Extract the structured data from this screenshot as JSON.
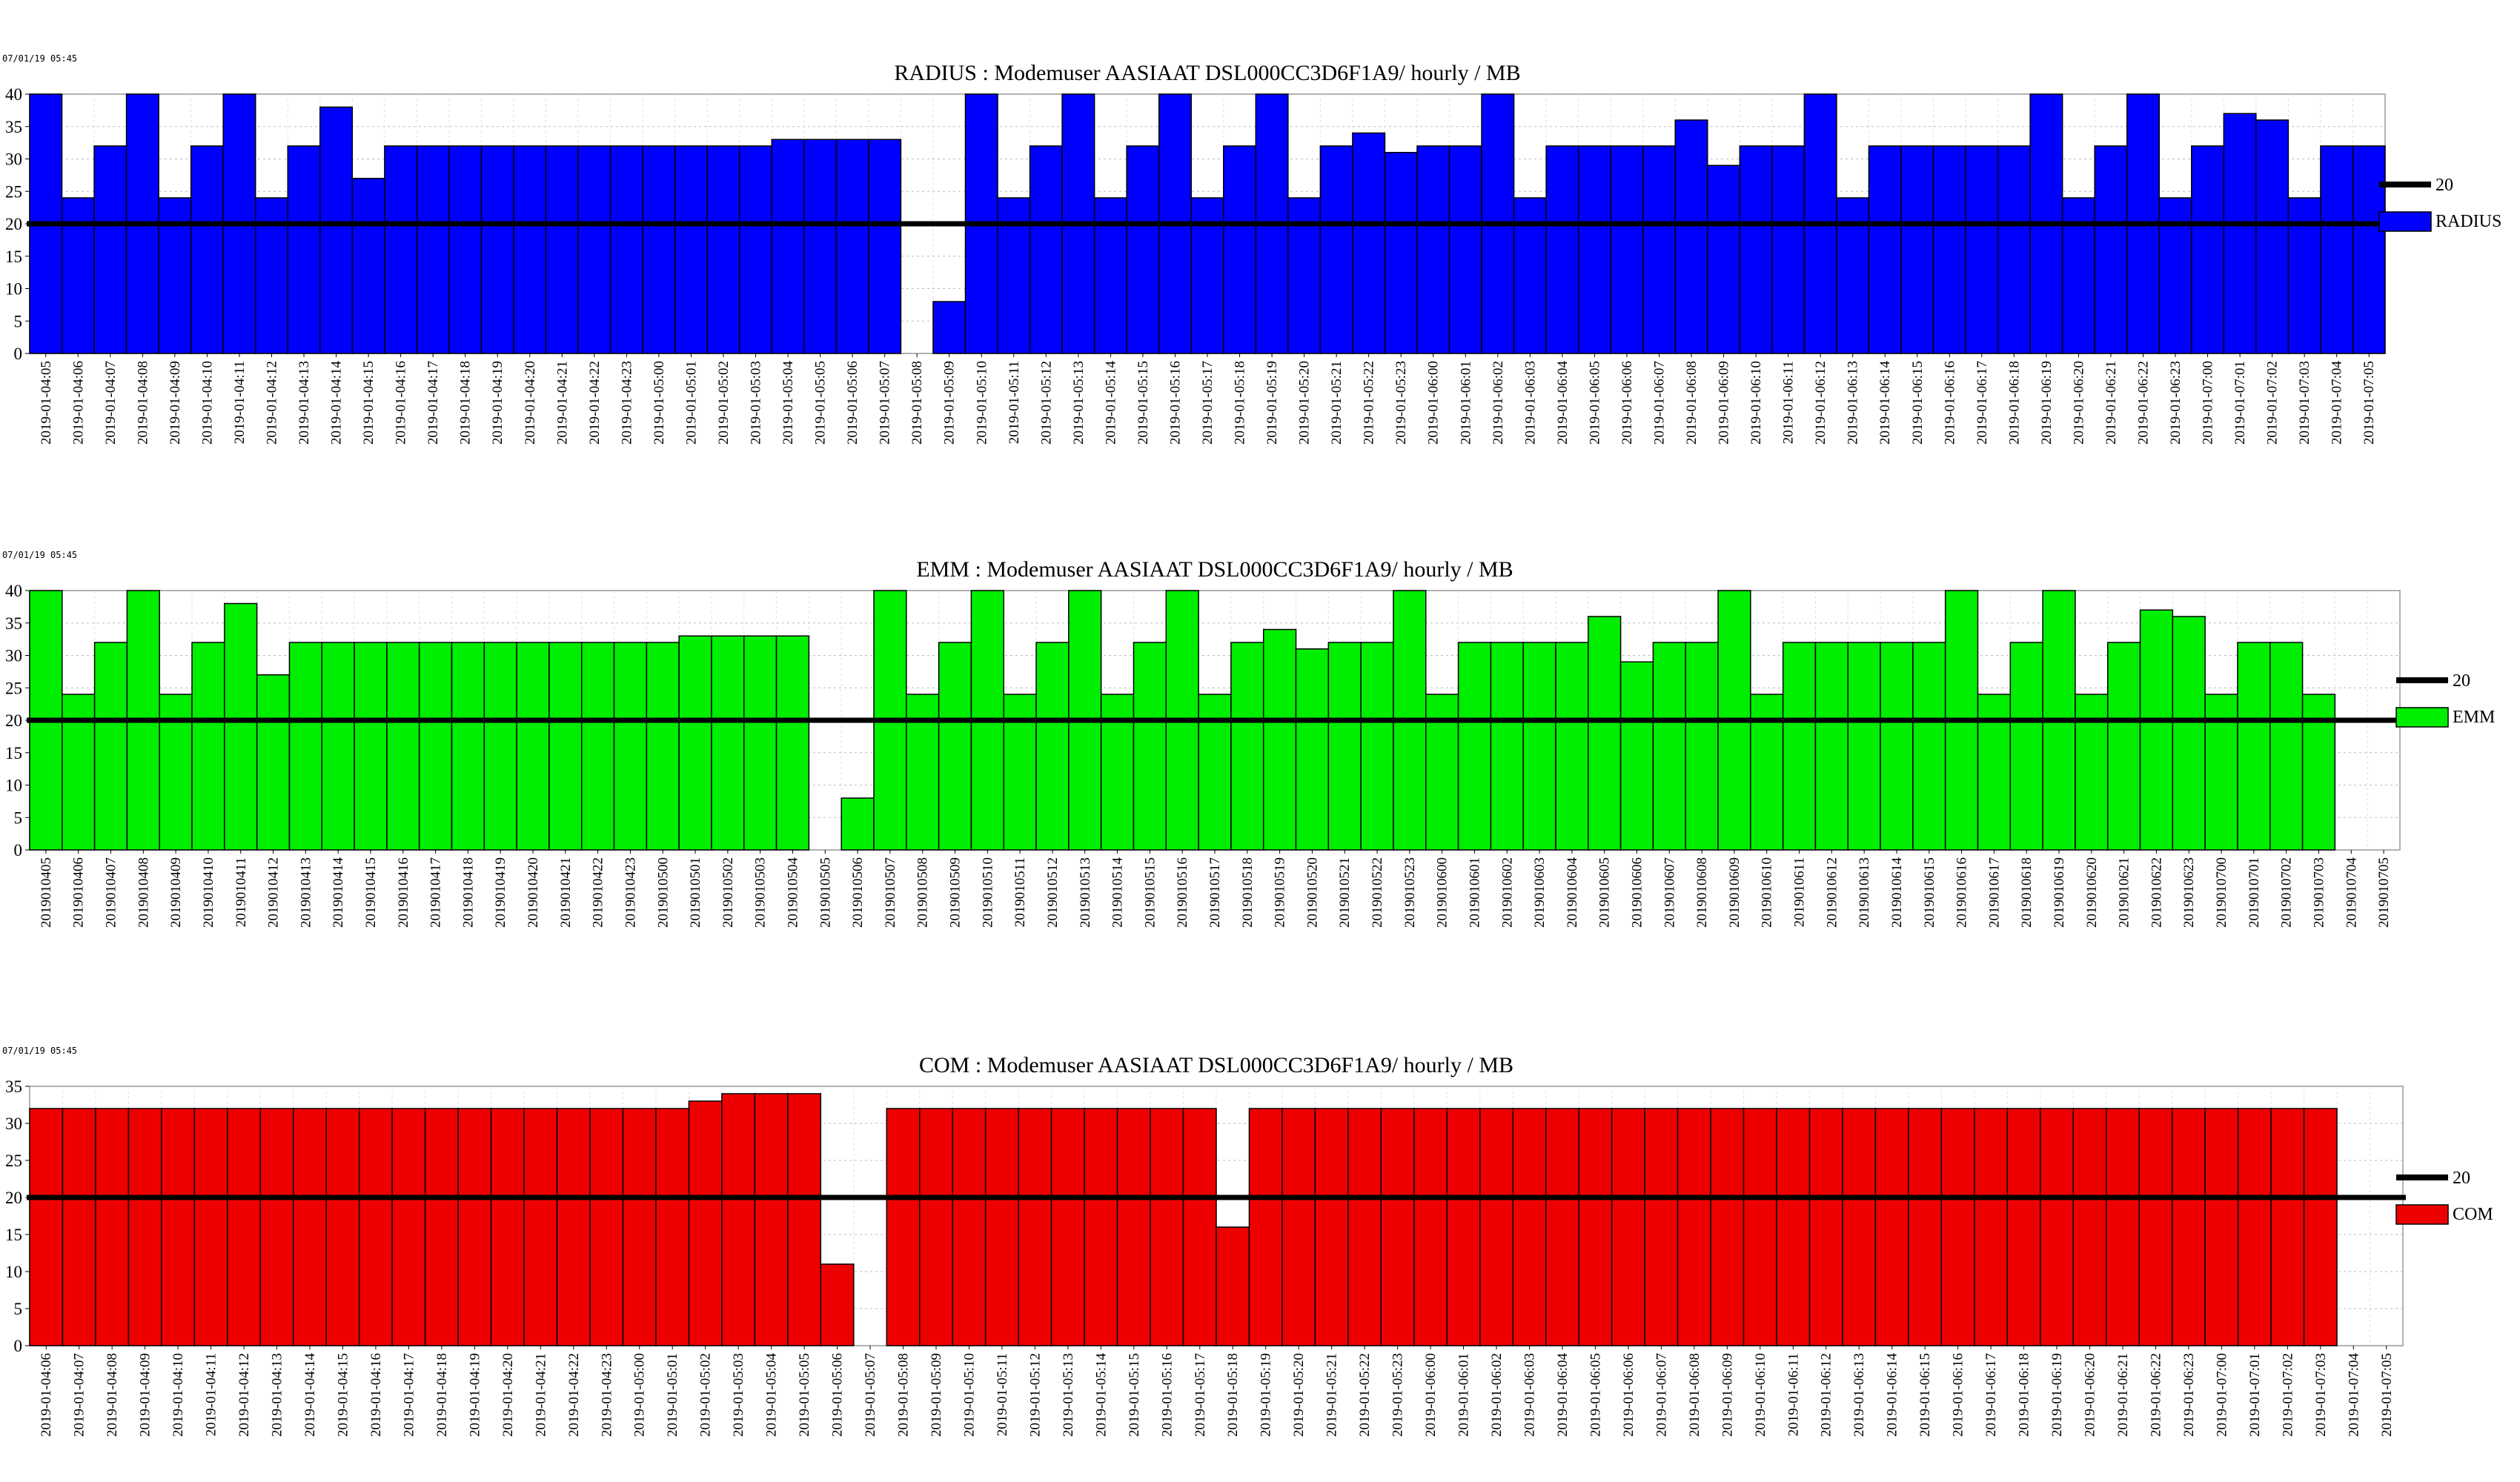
{
  "chart_data": [
    {
      "type": "bar",
      "timestamp": "07/01/19 05:45",
      "title": "RADIUS : Modemuser AASIAAT DSL000CC3D6F1A9/ hourly / MB",
      "ylim": [
        0,
        40
      ],
      "yticks": [
        0,
        5,
        10,
        15,
        20,
        25,
        30,
        35,
        40
      ],
      "grid": true,
      "threshold": 20,
      "legend_position": "right",
      "colors": {
        "bar": "#0000ff",
        "threshold": "#000000"
      },
      "series": [
        {
          "name": "20",
          "kind": "threshold-line",
          "value": 20
        },
        {
          "name": "RADIUS",
          "kind": "bars"
        }
      ],
      "categories": [
        "2019-01-04:05",
        "2019-01-04:06",
        "2019-01-04:07",
        "2019-01-04:08",
        "2019-01-04:09",
        "2019-01-04:10",
        "2019-01-04:11",
        "2019-01-04:12",
        "2019-01-04:13",
        "2019-01-04:14",
        "2019-01-04:15",
        "2019-01-04:16",
        "2019-01-04:17",
        "2019-01-04:18",
        "2019-01-04:19",
        "2019-01-04:20",
        "2019-01-04:21",
        "2019-01-04:22",
        "2019-01-04:23",
        "2019-01-05:00",
        "2019-01-05:01",
        "2019-01-05:02",
        "2019-01-05:03",
        "2019-01-05:04",
        "2019-01-05:05",
        "2019-01-05:06",
        "2019-01-05:07",
        "2019-01-05:08",
        "2019-01-05:09",
        "2019-01-05:10",
        "2019-01-05:11",
        "2019-01-05:12",
        "2019-01-05:13",
        "2019-01-05:14",
        "2019-01-05:15",
        "2019-01-05:16",
        "2019-01-05:17",
        "2019-01-05:18",
        "2019-01-05:19",
        "2019-01-05:20",
        "2019-01-05:21",
        "2019-01-05:22",
        "2019-01-05:23",
        "2019-01-06:00",
        "2019-01-06:01",
        "2019-01-06:02",
        "2019-01-06:03",
        "2019-01-06:04",
        "2019-01-06:05",
        "2019-01-06:06",
        "2019-01-06:07",
        "2019-01-06:08",
        "2019-01-06:09",
        "2019-01-06:10",
        "2019-01-06:11",
        "2019-01-06:12",
        "2019-01-06:13",
        "2019-01-06:14",
        "2019-01-06:15",
        "2019-01-06:16",
        "2019-01-06:17",
        "2019-01-06:18",
        "2019-01-06:19",
        "2019-01-06:20",
        "2019-01-06:21",
        "2019-01-06:22",
        "2019-01-06:23",
        "2019-01-07:00",
        "2019-01-07:01",
        "2019-01-07:02",
        "2019-01-07:03",
        "2019-01-07:04",
        "2019-01-07:05"
      ],
      "values": [
        40,
        24,
        32,
        40,
        24,
        32,
        40,
        24,
        32,
        38,
        27,
        32,
        32,
        32,
        32,
        32,
        32,
        32,
        32,
        32,
        32,
        32,
        32,
        33,
        33,
        33,
        33,
        0,
        8,
        40,
        24,
        32,
        40,
        24,
        32,
        40,
        24,
        32,
        40,
        24,
        32,
        34,
        31,
        32,
        32,
        40,
        24,
        32,
        32,
        32,
        32,
        36,
        29,
        32,
        32,
        40,
        24,
        32,
        32,
        32,
        32,
        32,
        40,
        24,
        32,
        40,
        24,
        32,
        37,
        36,
        24,
        32,
        32
      ]
    },
    {
      "type": "bar",
      "timestamp": "07/01/19 05:45",
      "title": "EMM :  Modemuser AASIAAT DSL000CC3D6F1A9/ hourly / MB",
      "ylim": [
        0,
        40
      ],
      "yticks": [
        0,
        5,
        10,
        15,
        20,
        25,
        30,
        35,
        40
      ],
      "grid": true,
      "threshold": 20,
      "legend_position": "right",
      "colors": {
        "bar": "#00ee00",
        "threshold": "#000000"
      },
      "series": [
        {
          "name": "20",
          "kind": "threshold-line",
          "value": 20
        },
        {
          "name": "EMM",
          "kind": "bars"
        }
      ],
      "categories": [
        "2019010405",
        "2019010406",
        "2019010407",
        "2019010408",
        "2019010409",
        "2019010410",
        "2019010411",
        "2019010412",
        "2019010413",
        "2019010414",
        "2019010415",
        "2019010416",
        "2019010417",
        "2019010418",
        "2019010419",
        "2019010420",
        "2019010421",
        "2019010422",
        "2019010423",
        "2019010500",
        "2019010501",
        "2019010502",
        "2019010503",
        "2019010504",
        "2019010505",
        "2019010506",
        "2019010507",
        "2019010508",
        "2019010509",
        "2019010510",
        "2019010511",
        "2019010512",
        "2019010513",
        "2019010514",
        "2019010515",
        "2019010516",
        "2019010517",
        "2019010518",
        "2019010519",
        "2019010520",
        "2019010521",
        "2019010522",
        "2019010523",
        "2019010600",
        "2019010601",
        "2019010602",
        "2019010603",
        "2019010604",
        "2019010605",
        "2019010606",
        "2019010607",
        "2019010608",
        "2019010609",
        "2019010610",
        "2019010611",
        "2019010612",
        "2019010613",
        "2019010614",
        "2019010615",
        "2019010616",
        "2019010617",
        "2019010618",
        "2019010619",
        "2019010620",
        "2019010621",
        "2019010622",
        "2019010623",
        "2019010700",
        "2019010701",
        "2019010702",
        "2019010703",
        "2019010704",
        "2019010705"
      ],
      "values": [
        40,
        24,
        32,
        40,
        24,
        32,
        38,
        27,
        32,
        32,
        32,
        32,
        32,
        32,
        32,
        32,
        32,
        32,
        32,
        32,
        33,
        33,
        33,
        33,
        0,
        8,
        40,
        24,
        32,
        40,
        24,
        32,
        40,
        24,
        32,
        40,
        24,
        32,
        34,
        31,
        32,
        32,
        40,
        24,
        32,
        32,
        32,
        32,
        36,
        29,
        32,
        32,
        40,
        24,
        32,
        32,
        32,
        32,
        32,
        40,
        24,
        32,
        40,
        24,
        32,
        37,
        36,
        24,
        32,
        32,
        24,
        0,
        0
      ]
    },
    {
      "type": "bar",
      "timestamp": "07/01/19 05:45",
      "title": "COM : Modemuser AASIAAT DSL000CC3D6F1A9/ hourly / MB",
      "ylim": [
        0,
        35
      ],
      "yticks": [
        0,
        5,
        10,
        15,
        20,
        25,
        30,
        35
      ],
      "grid": true,
      "threshold": 20,
      "legend_position": "right",
      "colors": {
        "bar": "#ee0000",
        "threshold": "#000000"
      },
      "series": [
        {
          "name": "20",
          "kind": "threshold-line",
          "value": 20
        },
        {
          "name": "COM",
          "kind": "bars"
        }
      ],
      "categories": [
        "2019-01-04:06",
        "2019-01-04:07",
        "2019-01-04:08",
        "2019-01-04:09",
        "2019-01-04:10",
        "2019-01-04:11",
        "2019-01-04:12",
        "2019-01-04:13",
        "2019-01-04:14",
        "2019-01-04:15",
        "2019-01-04:16",
        "2019-01-04:17",
        "2019-01-04:18",
        "2019-01-04:19",
        "2019-01-04:20",
        "2019-01-04:21",
        "2019-01-04:22",
        "2019-01-04:23",
        "2019-01-05:00",
        "2019-01-05:01",
        "2019-01-05:02",
        "2019-01-05:03",
        "2019-01-05:04",
        "2019-01-05:05",
        "2019-01-05:06",
        "2019-01-05:07",
        "2019-01-05:08",
        "2019-01-05:09",
        "2019-01-05:10",
        "2019-01-05:11",
        "2019-01-05:12",
        "2019-01-05:13",
        "2019-01-05:14",
        "2019-01-05:15",
        "2019-01-05:16",
        "2019-01-05:17",
        "2019-01-05:18",
        "2019-01-05:19",
        "2019-01-05:20",
        "2019-01-05:21",
        "2019-01-05:22",
        "2019-01-05:23",
        "2019-01-06:00",
        "2019-01-06:01",
        "2019-01-06:02",
        "2019-01-06:03",
        "2019-01-06:04",
        "2019-01-06:05",
        "2019-01-06:06",
        "2019-01-06:07",
        "2019-01-06:08",
        "2019-01-06:09",
        "2019-01-06:10",
        "2019-01-06:11",
        "2019-01-06:12",
        "2019-01-06:13",
        "2019-01-06:14",
        "2019-01-06:15",
        "2019-01-06:16",
        "2019-01-06:17",
        "2019-01-06:18",
        "2019-01-06:19",
        "2019-01-06:20",
        "2019-01-06:21",
        "2019-01-06:22",
        "2019-01-06:23",
        "2019-01-07:00",
        "2019-01-07:01",
        "2019-01-07:02",
        "2019-01-07:03",
        "2019-01-07:04",
        "2019-01-07:05"
      ],
      "values": [
        32,
        32,
        32,
        32,
        32,
        32,
        32,
        32,
        32,
        32,
        32,
        32,
        32,
        32,
        32,
        32,
        32,
        32,
        32,
        32,
        33,
        34,
        34,
        34,
        11,
        0,
        32,
        32,
        32,
        32,
        32,
        32,
        32,
        32,
        32,
        32,
        16,
        32,
        32,
        32,
        32,
        32,
        32,
        32,
        32,
        32,
        32,
        32,
        32,
        32,
        32,
        32,
        32,
        32,
        32,
        32,
        32,
        32,
        32,
        32,
        32,
        32,
        32,
        32,
        32,
        32,
        32,
        32,
        32,
        32,
        0,
        0
      ]
    }
  ]
}
